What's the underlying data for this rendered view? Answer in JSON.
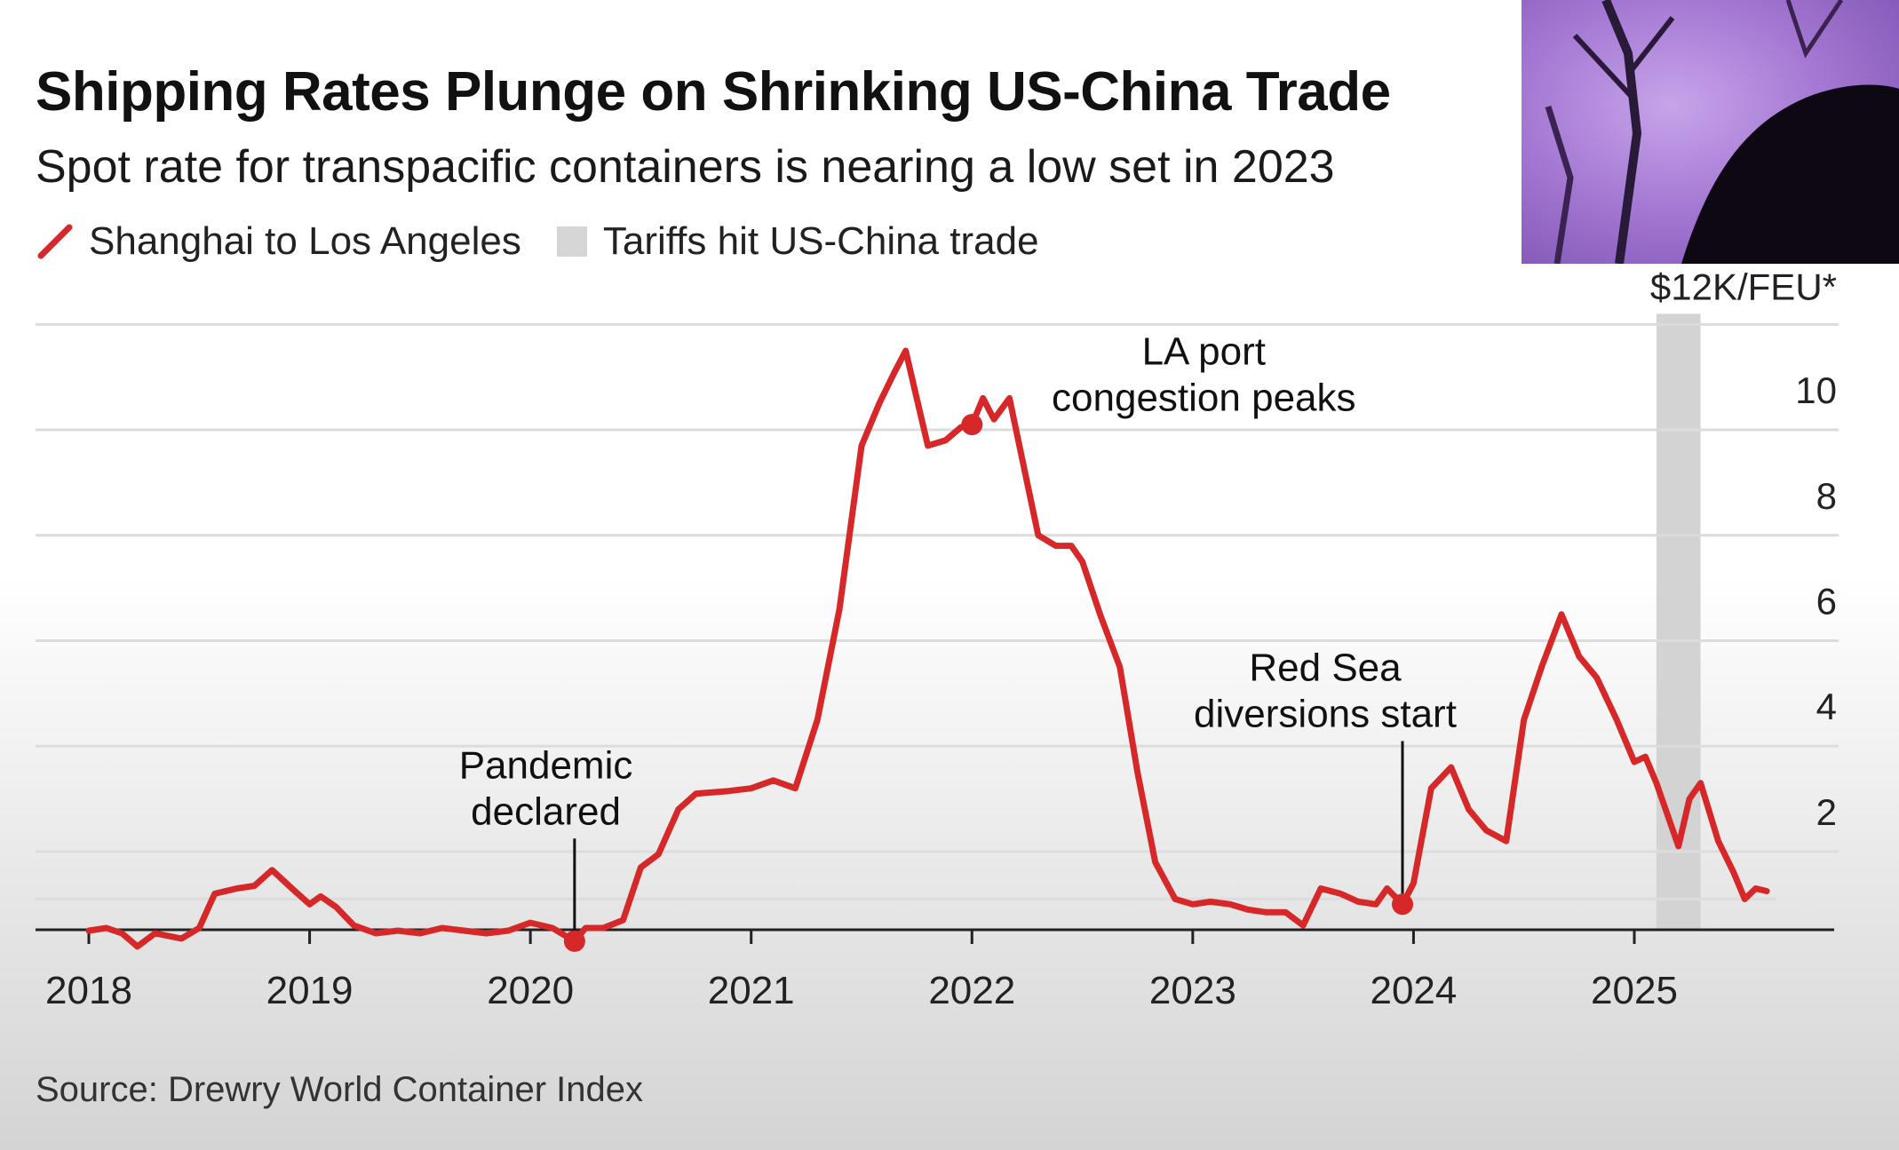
{
  "title": "Shipping Rates Plunge on Shrinking US-China Trade",
  "subtitle": "Spot rate for transpacific containers is nearing a low set in 2023",
  "legend": {
    "line_label": "Shanghai to Los Angeles",
    "band_label": "Tariffs hit US-China trade"
  },
  "source": "Source: Drewry World Container Index",
  "colors": {
    "series": "#d62828",
    "band": "#d3d3d3",
    "grid": "#dcdcdc",
    "axis": "#222222"
  },
  "chart_data": {
    "type": "line",
    "y_unit_label": "$12K/FEU*",
    "ylim": [
      0,
      12
    ],
    "xlim": [
      2017.8,
      2025.9
    ],
    "y_ticks": [
      {
        "value": 2,
        "label": "2"
      },
      {
        "value": 4,
        "label": "4"
      },
      {
        "value": 6,
        "label": "6"
      },
      {
        "value": 8,
        "label": "8"
      },
      {
        "value": 10,
        "label": "10"
      },
      {
        "value": 12,
        "label": "$12K/FEU*"
      }
    ],
    "x_ticks": [
      {
        "value": 2018,
        "label": "2018"
      },
      {
        "value": 2019,
        "label": "2019"
      },
      {
        "value": 2020,
        "label": "2020"
      },
      {
        "value": 2021,
        "label": "2021"
      },
      {
        "value": 2022,
        "label": "2022"
      },
      {
        "value": 2023,
        "label": "2023"
      },
      {
        "value": 2024,
        "label": "2024"
      },
      {
        "value": 2025,
        "label": "2025"
      }
    ],
    "grid": true,
    "legend_position": "top-left",
    "shaded_band": {
      "start": 2025.1,
      "end": 2025.3
    },
    "series": [
      {
        "name": "Shanghai to Los Angeles",
        "points": [
          [
            2018.0,
            0.5
          ],
          [
            2018.08,
            0.55
          ],
          [
            2018.15,
            0.45
          ],
          [
            2018.22,
            0.2
          ],
          [
            2018.3,
            0.45
          ],
          [
            2018.42,
            0.35
          ],
          [
            2018.5,
            0.55
          ],
          [
            2018.57,
            1.2
          ],
          [
            2018.67,
            1.3
          ],
          [
            2018.75,
            1.35
          ],
          [
            2018.83,
            1.65
          ],
          [
            2018.92,
            1.3
          ],
          [
            2019.0,
            1.0
          ],
          [
            2019.05,
            1.15
          ],
          [
            2019.12,
            0.95
          ],
          [
            2019.2,
            0.6
          ],
          [
            2019.3,
            0.45
          ],
          [
            2019.4,
            0.5
          ],
          [
            2019.5,
            0.45
          ],
          [
            2019.6,
            0.55
          ],
          [
            2019.7,
            0.5
          ],
          [
            2019.8,
            0.45
          ],
          [
            2019.9,
            0.5
          ],
          [
            2020.0,
            0.65
          ],
          [
            2020.1,
            0.55
          ],
          [
            2020.2,
            0.3
          ],
          [
            2020.25,
            0.55
          ],
          [
            2020.33,
            0.55
          ],
          [
            2020.42,
            0.7
          ],
          [
            2020.5,
            1.7
          ],
          [
            2020.58,
            1.95
          ],
          [
            2020.67,
            2.8
          ],
          [
            2020.75,
            3.1
          ],
          [
            2020.9,
            3.15
          ],
          [
            2021.0,
            3.2
          ],
          [
            2021.1,
            3.35
          ],
          [
            2021.2,
            3.2
          ],
          [
            2021.3,
            4.5
          ],
          [
            2021.4,
            6.6
          ],
          [
            2021.5,
            9.7
          ],
          [
            2021.58,
            10.5
          ],
          [
            2021.65,
            11.1
          ],
          [
            2021.7,
            11.5
          ],
          [
            2021.75,
            10.6
          ],
          [
            2021.8,
            9.7
          ],
          [
            2021.88,
            9.8
          ],
          [
            2021.95,
            10.05
          ],
          [
            2022.0,
            10.1
          ],
          [
            2022.05,
            10.6
          ],
          [
            2022.1,
            10.2
          ],
          [
            2022.17,
            10.6
          ],
          [
            2022.25,
            9.0
          ],
          [
            2022.3,
            8.0
          ],
          [
            2022.38,
            7.8
          ],
          [
            2022.45,
            7.8
          ],
          [
            2022.5,
            7.5
          ],
          [
            2022.58,
            6.5
          ],
          [
            2022.67,
            5.5
          ],
          [
            2022.75,
            3.5
          ],
          [
            2022.83,
            1.8
          ],
          [
            2022.92,
            1.1
          ],
          [
            2023.0,
            1.0
          ],
          [
            2023.08,
            1.05
          ],
          [
            2023.17,
            1.0
          ],
          [
            2023.25,
            0.9
          ],
          [
            2023.33,
            0.85
          ],
          [
            2023.42,
            0.85
          ],
          [
            2023.5,
            0.6
          ],
          [
            2023.58,
            1.3
          ],
          [
            2023.67,
            1.2
          ],
          [
            2023.75,
            1.05
          ],
          [
            2023.83,
            1.0
          ],
          [
            2023.88,
            1.3
          ],
          [
            2023.95,
            1.0
          ],
          [
            2024.0,
            1.4
          ],
          [
            2024.08,
            3.2
          ],
          [
            2024.17,
            3.6
          ],
          [
            2024.25,
            2.8
          ],
          [
            2024.33,
            2.4
          ],
          [
            2024.42,
            2.2
          ],
          [
            2024.5,
            4.5
          ],
          [
            2024.58,
            5.5
          ],
          [
            2024.67,
            6.5
          ],
          [
            2024.75,
            5.7
          ],
          [
            2024.83,
            5.3
          ],
          [
            2024.92,
            4.5
          ],
          [
            2025.0,
            3.7
          ],
          [
            2025.05,
            3.8
          ],
          [
            2025.1,
            3.3
          ],
          [
            2025.15,
            2.7
          ],
          [
            2025.2,
            2.1
          ],
          [
            2025.25,
            3.0
          ],
          [
            2025.3,
            3.3
          ],
          [
            2025.38,
            2.2
          ],
          [
            2025.45,
            1.6
          ],
          [
            2025.5,
            1.1
          ],
          [
            2025.55,
            1.3
          ],
          [
            2025.6,
            1.25
          ]
        ]
      }
    ],
    "annotations": [
      {
        "lines": [
          "Pandemic",
          "declared"
        ],
        "x": 2020.2,
        "y": 0.3,
        "text_x": 2020.07,
        "text_y": 2.55,
        "leader": true
      },
      {
        "lines": [
          "LA port",
          "congestion peaks"
        ],
        "x": 2022.0,
        "y": 10.1,
        "text_x": 2023.05,
        "text_y": 10.4,
        "leader": false
      },
      {
        "lines": [
          "Red Sea",
          "diversions start"
        ],
        "x": 2023.95,
        "y": 1.0,
        "text_x": 2023.6,
        "text_y": 4.4,
        "leader": true
      }
    ]
  }
}
